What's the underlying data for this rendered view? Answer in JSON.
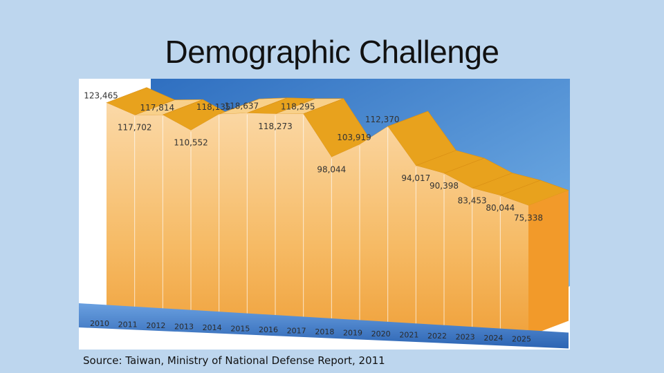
{
  "slide": {
    "title": "Demographic Challenge",
    "source": "Source: Taiwan, Ministry of National Defense Report, 2011"
  },
  "colors": {
    "background": "#bdd6ee",
    "ribbon_top": "#e8a21d",
    "ribbon_light": "#f8d08a",
    "area_fill": "#f5b75c",
    "sky": "#3d7cc7",
    "floor": "#3f7fd0"
  },
  "chart_data": {
    "type": "area",
    "title": "",
    "xlabel": "",
    "ylabel": "",
    "style": "3d-ribbon",
    "grid": false,
    "legend": "none",
    "categories": [
      "2010",
      "2011",
      "2012",
      "2013",
      "2014",
      "2015",
      "2016",
      "2017",
      "2018",
      "2019",
      "2020",
      "2021",
      "2022",
      "2023",
      "2024",
      "2025"
    ],
    "values": [
      123465,
      117702,
      117814,
      110552,
      118135,
      118637,
      118273,
      118295,
      98044,
      103919,
      112370,
      94017,
      90398,
      83453,
      80044,
      75338
    ],
    "value_labels": [
      "123,465",
      "117,702",
      "117,814",
      "110,552",
      "118,135",
      "118,637",
      "118,273",
      "118,295",
      "98,044",
      "103,919",
      "112,370",
      "94,017",
      "90,398",
      "83,453",
      "80,044",
      "75,338"
    ],
    "ylim": [
      0,
      130000
    ]
  }
}
